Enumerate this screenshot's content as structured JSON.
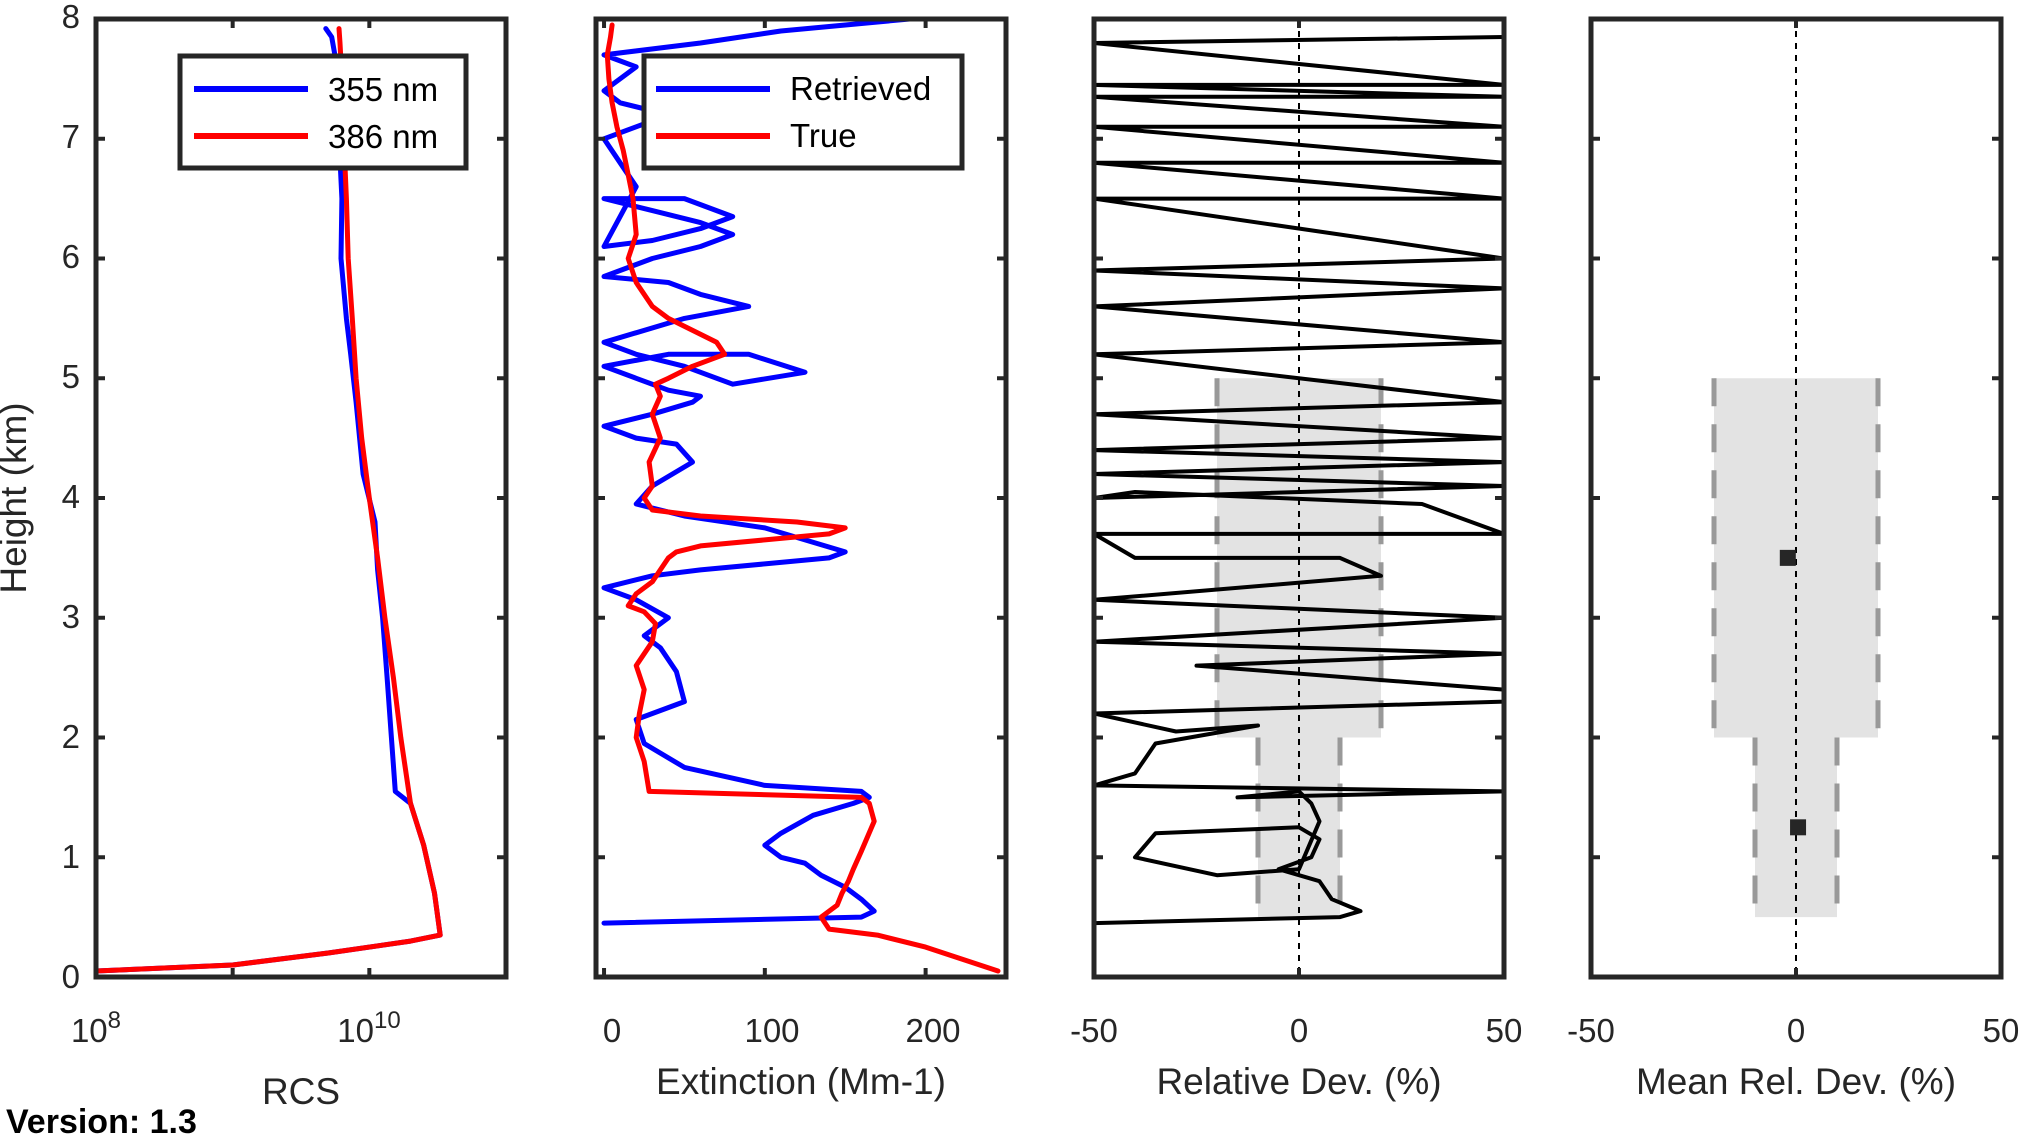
{
  "version_label": "Version: 1.3",
  "chart_data": [
    {
      "type": "line",
      "xlabel": "RCS",
      "ylabel": "Height (km)",
      "xscale": "log",
      "xlim": [
        100000000,
        100000000000
      ],
      "xticks": [
        {
          "base": "10",
          "exp": "8",
          "value": 100000000
        },
        {
          "base": "10",
          "exp": "10",
          "value": 10000000000
        }
      ],
      "ylim": [
        0,
        8
      ],
      "yticks": [
        "0",
        "1",
        "2",
        "3",
        "4",
        "5",
        "6",
        "7",
        "8"
      ],
      "legend": "top-right",
      "series": [
        {
          "name": "355 nm",
          "color": "#0000ff",
          "x": [
            100000000,
            1000000000,
            5000000000,
            20000000000,
            33000000000,
            30000000000,
            25000000000,
            20000000000,
            15500000000,
            14500000000,
            13500000000,
            12500000000,
            11500000000,
            11000000000,
            9000000000,
            8000000000,
            7300000000,
            6800000000,
            6200000000,
            6300000000,
            6000000000,
            5800000000,
            5600000000,
            5300000000,
            4800000000
          ],
          "y": [
            0.05,
            0.1,
            0.2,
            0.3,
            0.35,
            0.7,
            1.1,
            1.45,
            1.55,
            2.0,
            2.5,
            3.0,
            3.4,
            3.8,
            4.2,
            4.8,
            5.2,
            5.5,
            6.0,
            6.5,
            7.0,
            7.5,
            7.7,
            7.85,
            7.92
          ]
        },
        {
          "name": "386 nm",
          "color": "#ff0000",
          "x": [
            100000000,
            1000000000,
            5000000000,
            20000000000,
            33000000000,
            30000000000,
            25000000000,
            20000000000,
            17000000000,
            15000000000,
            13000000000,
            11500000000,
            10000000000,
            8800000000,
            8000000000,
            7500000000,
            7000000000,
            6800000000,
            6500000000,
            6300000000,
            6100000000,
            6000000000
          ],
          "y": [
            0.05,
            0.1,
            0.2,
            0.3,
            0.35,
            0.7,
            1.1,
            1.45,
            2.0,
            2.5,
            3.0,
            3.5,
            4.0,
            4.5,
            5.0,
            5.5,
            6.0,
            6.5,
            7.0,
            7.5,
            7.8,
            7.92
          ]
        }
      ]
    },
    {
      "type": "line",
      "xlabel": "Extinction (Mm-1)",
      "ylabel": "",
      "xlim": [
        -5,
        250
      ],
      "xticks": [
        "0",
        "100",
        "200"
      ],
      "ylim": [
        0,
        8
      ],
      "legend": "top-right",
      "series": [
        {
          "name": "Retrieved",
          "color": "#0000ff",
          "x": [
            0,
            160,
            168,
            160,
            150,
            135,
            125,
            110,
            100,
            110,
            130,
            155,
            165,
            160,
            100,
            50,
            25,
            20,
            50,
            45,
            35,
            25,
            40,
            20,
            0,
            30,
            60,
            100,
            140,
            150,
            100,
            50,
            20,
            30,
            55,
            45,
            20,
            0,
            30,
            55,
            60,
            40,
            20,
            0,
            40,
            90,
            125,
            80,
            50,
            20,
            0,
            50,
            90,
            60,
            40,
            0,
            30,
            60,
            80,
            60,
            30,
            0,
            50,
            80,
            60,
            30,
            0,
            20,
            0,
            40,
            10,
            0,
            20,
            0,
            60,
            110,
            190
          ],
          "y": [
            0.45,
            0.5,
            0.55,
            0.65,
            0.75,
            0.85,
            0.95,
            1.0,
            1.1,
            1.2,
            1.35,
            1.45,
            1.5,
            1.55,
            1.6,
            1.75,
            1.95,
            2.15,
            2.3,
            2.55,
            2.75,
            2.85,
            3.0,
            3.15,
            3.25,
            3.35,
            3.4,
            3.45,
            3.5,
            3.55,
            3.75,
            3.85,
            3.95,
            4.1,
            4.3,
            4.45,
            4.5,
            4.6,
            4.7,
            4.8,
            4.85,
            4.9,
            5.0,
            5.1,
            5.2,
            5.2,
            5.05,
            4.95,
            5.1,
            5.2,
            5.3,
            5.5,
            5.6,
            5.7,
            5.8,
            5.85,
            6.0,
            6.1,
            6.2,
            6.3,
            6.4,
            6.5,
            6.5,
            6.35,
            6.25,
            6.15,
            6.1,
            6.6,
            7.0,
            7.2,
            7.3,
            7.4,
            7.6,
            7.7,
            7.8,
            7.9,
            8.0
          ]
        },
        {
          "name": "True",
          "color": "#ff0000",
          "x": [
            245,
            200,
            170,
            140,
            135,
            145,
            148,
            152,
            155,
            160,
            168,
            165,
            160,
            28,
            25,
            20,
            22,
            25,
            20,
            30,
            32,
            25,
            15,
            20,
            30,
            35,
            40,
            45,
            60,
            100,
            140,
            150,
            120,
            60,
            30,
            25,
            30,
            28,
            35,
            30,
            35,
            32,
            40,
            55,
            75,
            70,
            40,
            30,
            20,
            15,
            20,
            18,
            15,
            12,
            10,
            8,
            5,
            3,
            2,
            4,
            5
          ],
          "y": [
            0.05,
            0.25,
            0.35,
            0.4,
            0.5,
            0.6,
            0.7,
            0.8,
            0.9,
            1.05,
            1.3,
            1.45,
            1.5,
            1.55,
            1.8,
            2.0,
            2.2,
            2.4,
            2.6,
            2.8,
            2.95,
            3.05,
            3.1,
            3.2,
            3.3,
            3.4,
            3.5,
            3.55,
            3.6,
            3.65,
            3.7,
            3.75,
            3.8,
            3.85,
            3.9,
            4.0,
            4.1,
            4.3,
            4.5,
            4.7,
            4.85,
            4.95,
            5.0,
            5.1,
            5.2,
            5.3,
            5.5,
            5.6,
            5.8,
            6.0,
            6.2,
            6.5,
            6.7,
            6.9,
            7.0,
            7.1,
            7.3,
            7.5,
            7.7,
            7.85,
            7.95
          ]
        }
      ]
    },
    {
      "type": "line",
      "xlabel": "Relative Dev. (%)",
      "ylabel": "",
      "xlim": [
        -50,
        50
      ],
      "xticks": [
        "-50",
        "0",
        "50"
      ],
      "ylim": [
        0,
        8
      ],
      "zero_line": true,
      "shaded_bands": [
        {
          "y_range": [
            0.5,
            2.0
          ],
          "x_range": [
            -10,
            10
          ]
        },
        {
          "y_range": [
            2.0,
            5.0
          ],
          "x_range": [
            -20,
            20
          ]
        }
      ],
      "series": [
        {
          "name": "",
          "color": "#000000",
          "x": [
            -50,
            10,
            15,
            8,
            5,
            0,
            -5,
            3,
            5,
            0,
            -35,
            -40,
            -20,
            0,
            5,
            3,
            0,
            -15,
            50,
            -50,
            -40,
            -35,
            -10,
            -30,
            -50,
            50,
            50,
            -25,
            50,
            -50,
            50,
            -50,
            20,
            10,
            -40,
            -50,
            50,
            30,
            -40,
            -50,
            50,
            -50,
            50,
            -50,
            50,
            -50,
            50,
            -50,
            50,
            -50,
            50,
            -50,
            50,
            -50,
            50,
            -50,
            50,
            -50,
            50,
            -50,
            50,
            -50,
            50,
            -50,
            50
          ],
          "y": [
            0.45,
            0.5,
            0.55,
            0.65,
            0.8,
            0.85,
            0.9,
            1.0,
            1.15,
            1.25,
            1.2,
            1.0,
            0.85,
            0.9,
            1.3,
            1.45,
            1.55,
            1.5,
            1.55,
            1.6,
            1.7,
            1.95,
            2.1,
            2.05,
            2.2,
            2.3,
            2.4,
            2.6,
            2.7,
            2.8,
            3.0,
            3.15,
            3.35,
            3.5,
            3.5,
            3.7,
            3.7,
            3.95,
            4.05,
            4.0,
            4.1,
            4.2,
            4.3,
            4.4,
            4.5,
            4.7,
            4.8,
            5.2,
            5.3,
            5.6,
            5.75,
            5.9,
            6.0,
            6.5,
            6.5,
            6.8,
            6.8,
            7.1,
            7.1,
            7.35,
            7.35,
            7.45,
            7.45,
            7.8,
            7.85
          ]
        }
      ]
    },
    {
      "type": "scatter",
      "xlabel": "Mean Rel. Dev. (%)",
      "ylabel": "",
      "xlim": [
        -50,
        50
      ],
      "xticks": [
        "-50",
        "0",
        "50"
      ],
      "ylim": [
        0,
        8
      ],
      "zero_line": true,
      "shaded_bands": [
        {
          "y_range": [
            0.5,
            2.0
          ],
          "x_range": [
            -10,
            10
          ]
        },
        {
          "y_range": [
            2.0,
            5.0
          ],
          "x_range": [
            -20,
            20
          ]
        }
      ],
      "points": [
        {
          "x": 0.5,
          "y": 1.25
        },
        {
          "x": -2,
          "y": 3.5
        }
      ]
    }
  ]
}
